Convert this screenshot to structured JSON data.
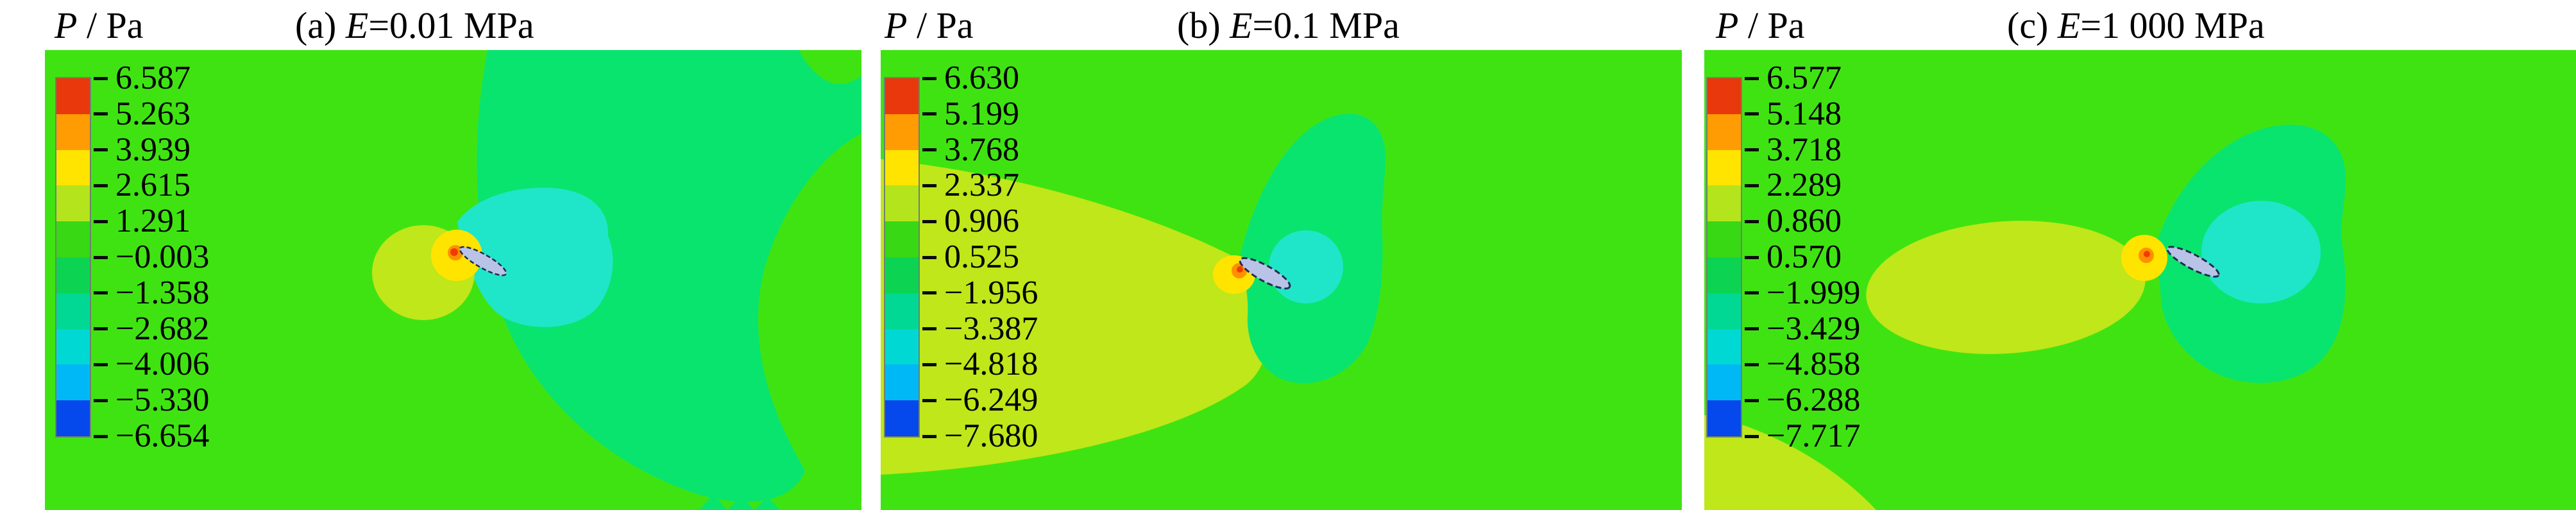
{
  "figure": {
    "colorbar_symbol": "P",
    "colorbar_unit": " / Pa",
    "palette": [
      "#e8380c",
      "#ff9c04",
      "#ffe400",
      "#b4e41c",
      "#38d814",
      "#0cd452",
      "#00d894",
      "#00d8d4",
      "#00b8f5",
      "#0548ec"
    ],
    "field_colors": {
      "background": "#40e312",
      "suction_lobe": "#09e46e",
      "strong_suction_lobe": "#1fe6c8",
      "compression_lobe": "#bfe719",
      "stagnation_spot": "#ffe400",
      "peak_ring": "#ff9000",
      "peak_core": "#f03c00",
      "body_fill": "#b9c3e8",
      "body_outline": "#232d4e"
    },
    "panels": [
      {
        "label_prefix": "(a) ",
        "label_var": "E",
        "label_rest": "=0.01 MPa",
        "legend": [
          "6.587",
          "5.263",
          "3.939",
          "2.615",
          "1.291",
          "−0.003",
          "−1.358",
          "−2.682",
          "−4.006",
          "−5.330",
          "−6.654"
        ]
      },
      {
        "label_prefix": "(b) ",
        "label_var": "E",
        "label_rest": "=0.1 MPa",
        "legend": [
          "6.630",
          "5.199",
          "3.768",
          "2.337",
          "0.906",
          "0.525",
          "−1.956",
          "−3.387",
          "−4.818",
          "−6.249",
          "−7.680"
        ]
      },
      {
        "label_prefix": "(c) ",
        "label_var": "E",
        "label_rest": "=1 000 MPa",
        "legend": [
          "6.577",
          "5.148",
          "3.718",
          "2.289",
          "0.860",
          "0.570",
          "−1.999",
          "−3.429",
          "−4.858",
          "−6.288",
          "−7.717"
        ]
      }
    ]
  },
  "chart_data": [
    {
      "type": "heatmap",
      "title": "(a) E=0.01 MPa",
      "colorbar_label": "P / Pa",
      "legend_position": "left",
      "levels": [
        6.587,
        5.263,
        3.939,
        2.615,
        1.291,
        -0.003,
        -1.358,
        -2.682,
        -4.006,
        -5.33,
        -6.654
      ],
      "palette": [
        "#e8380c",
        "#ff9c04",
        "#ffe400",
        "#b4e41c",
        "#38d814",
        "#0cd452",
        "#00d894",
        "#00d8d4",
        "#00b8f5",
        "#0548ec"
      ]
    },
    {
      "type": "heatmap",
      "title": "(b) E=0.1 MPa",
      "colorbar_label": "P / Pa",
      "legend_position": "left",
      "levels": [
        6.63,
        5.199,
        3.768,
        2.337,
        0.906,
        0.525,
        -1.956,
        -3.387,
        -4.818,
        -6.249,
        -7.68
      ],
      "palette": [
        "#e8380c",
        "#ff9c04",
        "#ffe400",
        "#b4e41c",
        "#38d814",
        "#0cd452",
        "#00d894",
        "#00d8d4",
        "#00b8f5",
        "#0548ec"
      ]
    },
    {
      "type": "heatmap",
      "title": "(c) E=1 000 MPa",
      "colorbar_label": "P / Pa",
      "legend_position": "left",
      "levels": [
        6.577,
        5.148,
        3.718,
        2.289,
        0.86,
        0.57,
        -1.999,
        -3.429,
        -4.858,
        -6.288,
        -7.717
      ],
      "palette": [
        "#e8380c",
        "#ff9c04",
        "#ffe400",
        "#b4e41c",
        "#38d814",
        "#0cd452",
        "#00d894",
        "#00d8d4",
        "#00b8f5",
        "#0548ec"
      ]
    }
  ]
}
